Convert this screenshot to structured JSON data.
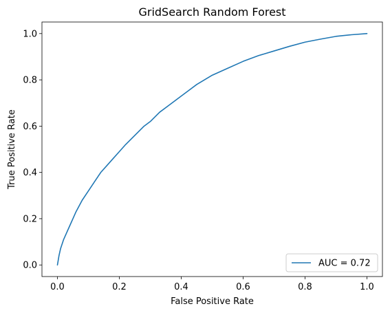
{
  "chart_data": {
    "type": "line",
    "title": "GridSearch Random Forest",
    "xlabel": "False Positive Rate",
    "ylabel": "True Positive Rate",
    "xlim": [
      -0.05,
      1.05
    ],
    "ylim": [
      -0.05,
      1.05
    ],
    "xticks": [
      0.0,
      0.2,
      0.4,
      0.6,
      0.8,
      1.0
    ],
    "yticks": [
      0.0,
      0.2,
      0.4,
      0.6,
      0.8,
      1.0
    ],
    "xtick_labels": [
      "0.0",
      "0.2",
      "0.4",
      "0.6",
      "0.8",
      "1.0"
    ],
    "ytick_labels": [
      "0.0",
      "0.2",
      "0.4",
      "0.6",
      "0.8",
      "1.0"
    ],
    "grid": false,
    "legend_position": "lower-right",
    "series": [
      {
        "name": "AUC = 0.72",
        "color": "#1f77b4",
        "x": [
          0.0,
          0.005,
          0.01,
          0.02,
          0.03,
          0.04,
          0.05,
          0.06,
          0.08,
          0.1,
          0.12,
          0.14,
          0.16,
          0.18,
          0.2,
          0.22,
          0.25,
          0.28,
          0.3,
          0.33,
          0.36,
          0.4,
          0.45,
          0.5,
          0.55,
          0.6,
          0.65,
          0.7,
          0.75,
          0.8,
          0.85,
          0.9,
          0.95,
          1.0
        ],
        "y": [
          0.0,
          0.04,
          0.07,
          0.11,
          0.14,
          0.17,
          0.2,
          0.23,
          0.28,
          0.32,
          0.36,
          0.4,
          0.43,
          0.46,
          0.49,
          0.52,
          0.56,
          0.6,
          0.62,
          0.66,
          0.69,
          0.73,
          0.78,
          0.82,
          0.85,
          0.88,
          0.905,
          0.925,
          0.945,
          0.963,
          0.976,
          0.988,
          0.995,
          1.0
        ]
      }
    ]
  }
}
